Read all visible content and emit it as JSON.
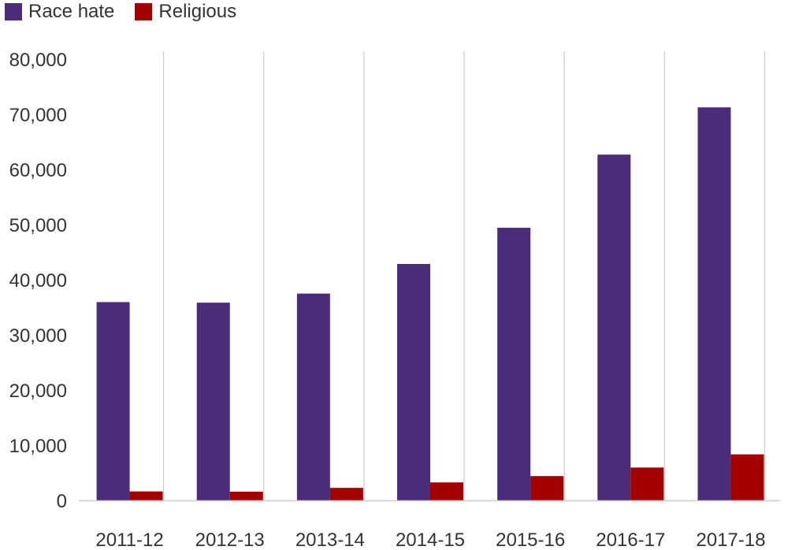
{
  "chart_data": {
    "type": "bar",
    "title": "",
    "xlabel": "",
    "ylabel": "",
    "categories": [
      "2011-12",
      "2012-13",
      "2013-14",
      "2014-15",
      "2015-16",
      "2016-17",
      "2017-18"
    ],
    "series": [
      {
        "name": "Race hate",
        "color": "#4b2c7b",
        "values": [
          35944,
          35845,
          37484,
          42862,
          49419,
          62685,
          71251
        ]
      },
      {
        "name": "Religious",
        "color": "#a40000",
        "values": [
          1618,
          1573,
          2264,
          3254,
          4400,
          5949,
          8336
        ]
      }
    ],
    "ylim": [
      0,
      80000
    ],
    "yticks": [
      0,
      10000,
      20000,
      30000,
      40000,
      50000,
      60000,
      70000,
      80000
    ],
    "ytick_labels": [
      "0",
      "10,000",
      "20,000",
      "30,000",
      "40,000",
      "50,000",
      "60,000",
      "70,000",
      "80,000"
    ],
    "grid": {
      "vertical": true,
      "horizontal": false
    },
    "legend": "top-left"
  }
}
